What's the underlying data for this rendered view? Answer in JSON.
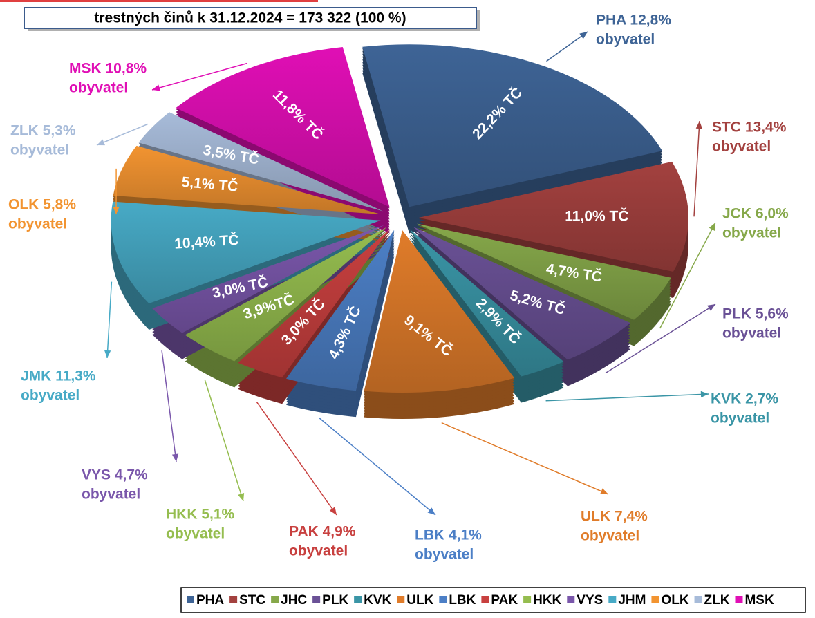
{
  "chart_data": {
    "type": "pie",
    "title": "trestných činů k 31.12.2024 = 173 322 (100 %)",
    "categories": [
      "PHA",
      "STC",
      "JHC",
      "PLK",
      "KVK",
      "ULK",
      "LBK",
      "PAK",
      "HKK",
      "VYS",
      "JHM",
      "OLK",
      "ZLK",
      "MSK"
    ],
    "values": [
      22.2,
      11.0,
      4.7,
      5.2,
      2.9,
      9.1,
      4.3,
      3.0,
      3.9,
      3.0,
      10.4,
      5.1,
      3.5,
      11.8
    ],
    "value_labels": [
      "22,2% TČ",
      "11,0% TČ",
      "4,7% TČ",
      "5,2% TČ",
      "2,9% TČ",
      "9,1% TČ",
      "4,3% TČ",
      "3,0% TČ",
      "3,9%TČ",
      "3,0% TČ",
      "10,4% TČ",
      "5,1% TČ",
      "3,5% TČ",
      "11,8% TČ"
    ],
    "colors": [
      "#3e6496",
      "#a3413f",
      "#86a84a",
      "#6a5196",
      "#3a95a6",
      "#e07c2a",
      "#4c7fc6",
      "#c8403f",
      "#95bd4f",
      "#7a57ab",
      "#47aac6",
      "#f29431",
      "#a7bbd9",
      "#e00fb5"
    ],
    "annotations": [
      [
        "PHA 12,8%",
        "obyvatel"
      ],
      [
        "STC 13,4%",
        "obyvatel"
      ],
      [
        "JCK 6,0%",
        "obyvatel"
      ],
      [
        "PLK 5,6%",
        "obyvatel"
      ],
      [
        "KVK 2,7%",
        "obyvatel"
      ],
      [
        "ULK 7,4%",
        "obyvatel"
      ],
      [
        "LBK 4,1%",
        "obyvatel"
      ],
      [
        "PAK 4,9%",
        "obyvatel"
      ],
      [
        "HKK 5,1%",
        "obyvatel"
      ],
      [
        "VYS 4,7%",
        "obyvatel"
      ],
      [
        "JMK 11,3%",
        "obyvatel"
      ],
      [
        "OLK 5,8%",
        "obyvatel"
      ],
      [
        "ZLK 5,3%",
        "obyvatel"
      ],
      [
        "MSK 10,8%",
        "obyvatel"
      ]
    ],
    "legend": "bottom"
  }
}
